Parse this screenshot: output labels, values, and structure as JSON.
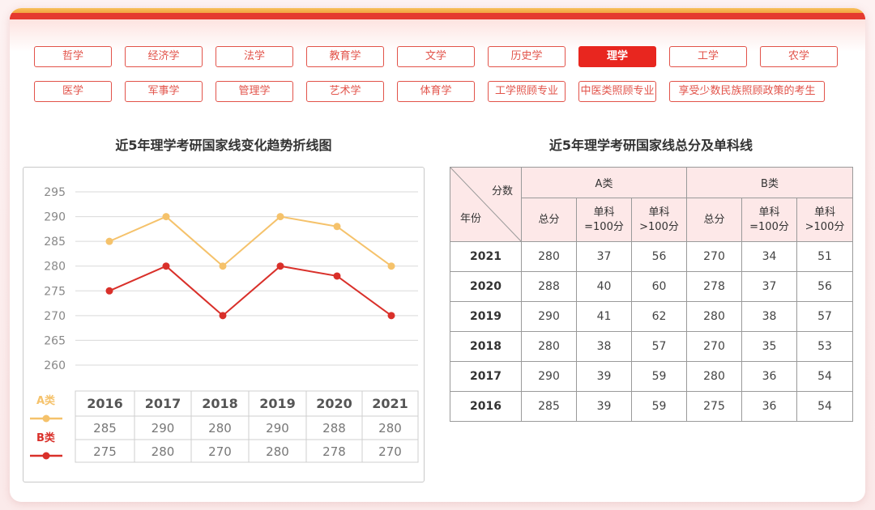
{
  "tabs": [
    {
      "label": "哲学",
      "active": false
    },
    {
      "label": "经济学",
      "active": false
    },
    {
      "label": "法学",
      "active": false
    },
    {
      "label": "教育学",
      "active": false
    },
    {
      "label": "文学",
      "active": false
    },
    {
      "label": "历史学",
      "active": false
    },
    {
      "label": "理学",
      "active": true
    },
    {
      "label": "工学",
      "active": false
    },
    {
      "label": "农学",
      "active": false
    },
    {
      "label": "医学",
      "active": false
    },
    {
      "label": "军事学",
      "active": false
    },
    {
      "label": "管理学",
      "active": false
    },
    {
      "label": "艺术学",
      "active": false
    },
    {
      "label": "体育学",
      "active": false
    },
    {
      "label": "工学照顾专业",
      "active": false
    },
    {
      "label": "中医类照顾专业",
      "active": false
    },
    {
      "label": "享受少数民族照顾政策的考生",
      "active": false
    }
  ],
  "chart_title": "近5年理学考研国家线变化趋势折线图",
  "table_title": "近5年理学考研国家线总分及单科线",
  "colors": {
    "series_a": "#f5c26b",
    "series_b": "#d9302a",
    "accent": "#e8261f"
  },
  "chart_data": {
    "type": "line",
    "x": [
      "2016",
      "2017",
      "2018",
      "2019",
      "2020",
      "2021"
    ],
    "ylim": [
      260,
      295
    ],
    "yticks": [
      260,
      265,
      270,
      275,
      280,
      285,
      290,
      295
    ],
    "grid": true,
    "series": [
      {
        "name": "A类",
        "values": [
          285,
          290,
          280,
          290,
          288,
          280
        ],
        "labels": [
          "285",
          "290",
          "280",
          "290",
          "288",
          "280"
        ]
      },
      {
        "name": "B类",
        "values": [
          275,
          280,
          270,
          280,
          278,
          270
        ],
        "labels": [
          "275",
          "280",
          "270",
          "280",
          "278",
          "270"
        ]
      }
    ]
  },
  "table": {
    "corner_top": "分数",
    "corner_bottom": "年份",
    "group_a": "A类",
    "group_b": "B类",
    "sub_headers": [
      "总分",
      "单科\n=100分",
      "单科\n>100分",
      "总分",
      "单科\n=100分",
      "单科\n>100分"
    ],
    "rows": [
      {
        "year": "2021",
        "cells": [
          "280",
          "37",
          "56",
          "270",
          "34",
          "51"
        ]
      },
      {
        "year": "2020",
        "cells": [
          "288",
          "40",
          "60",
          "278",
          "37",
          "56"
        ]
      },
      {
        "year": "2019",
        "cells": [
          "290",
          "41",
          "62",
          "280",
          "38",
          "57"
        ]
      },
      {
        "year": "2018",
        "cells": [
          "280",
          "38",
          "57",
          "270",
          "35",
          "53"
        ]
      },
      {
        "year": "2017",
        "cells": [
          "290",
          "39",
          "59",
          "280",
          "36",
          "54"
        ]
      },
      {
        "year": "2016",
        "cells": [
          "285",
          "39",
          "59",
          "275",
          "36",
          "54"
        ]
      }
    ]
  }
}
